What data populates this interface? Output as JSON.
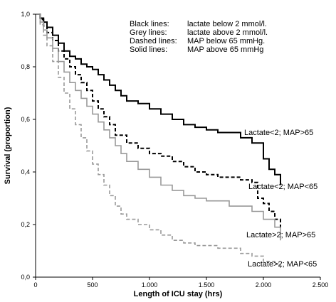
{
  "chart_data": {
    "type": "line",
    "xlabel": "Length of ICU stay (hrs)",
    "ylabel": "Survival (proportion)",
    "xlim": [
      0,
      2500
    ],
    "ylim": [
      0,
      1.0
    ],
    "x_ticks": [
      0,
      500,
      1000,
      1500,
      2000,
      2500
    ],
    "x_tick_labels": [
      "0",
      "500",
      "1.000",
      "1.500",
      "2.000",
      "2.500"
    ],
    "y_ticks": [
      0,
      0.2,
      0.4,
      0.6,
      0.8,
      1.0
    ],
    "y_tick_labels": [
      "0,0",
      "0,2",
      "0,4",
      "0,6",
      "0,8",
      "1,0"
    ],
    "grid": false,
    "legend_lines": [
      {
        "key": "Black lines:",
        "desc": "lactate below 2 mmol/l."
      },
      {
        "key": "Grey lines:",
        "desc": "lactate above 2 mmol/l."
      },
      {
        "key": "Dashed lines:",
        "desc": "MAP below 65 mmHg."
      },
      {
        "key": "Solid lines:",
        "desc": "MAP above 65 mmHg"
      }
    ],
    "legend_placement": "top-right",
    "series": [
      {
        "name": "Lactate<2; MAP>65",
        "color": "#000000",
        "dashed": false,
        "points": [
          [
            0,
            1.0
          ],
          [
            40,
            0.985
          ],
          [
            70,
            0.97
          ],
          [
            100,
            0.95
          ],
          [
            150,
            0.92
          ],
          [
            200,
            0.89
          ],
          [
            250,
            0.86
          ],
          [
            300,
            0.84
          ],
          [
            350,
            0.83
          ],
          [
            400,
            0.81
          ],
          [
            450,
            0.8
          ],
          [
            500,
            0.79
          ],
          [
            550,
            0.77
          ],
          [
            600,
            0.75
          ],
          [
            650,
            0.73
          ],
          [
            700,
            0.71
          ],
          [
            750,
            0.69
          ],
          [
            800,
            0.67
          ],
          [
            900,
            0.66
          ],
          [
            1000,
            0.64
          ],
          [
            1100,
            0.62
          ],
          [
            1200,
            0.6
          ],
          [
            1300,
            0.58
          ],
          [
            1400,
            0.57
          ],
          [
            1500,
            0.56
          ],
          [
            1600,
            0.55
          ],
          [
            1800,
            0.53
          ],
          [
            1900,
            0.51
          ],
          [
            2000,
            0.45
          ],
          [
            2050,
            0.41
          ],
          [
            2100,
            0.39
          ],
          [
            2150,
            0.35
          ]
        ]
      },
      {
        "name": "Lactate<2; MAP<65",
        "color": "#000000",
        "dashed": true,
        "points": [
          [
            0,
            1.0
          ],
          [
            40,
            0.98
          ],
          [
            70,
            0.955
          ],
          [
            100,
            0.93
          ],
          [
            150,
            0.9
          ],
          [
            200,
            0.86
          ],
          [
            250,
            0.83
          ],
          [
            300,
            0.8
          ],
          [
            350,
            0.77
          ],
          [
            400,
            0.74
          ],
          [
            450,
            0.71
          ],
          [
            500,
            0.67
          ],
          [
            550,
            0.64
          ],
          [
            600,
            0.61
          ],
          [
            650,
            0.58
          ],
          [
            700,
            0.54
          ],
          [
            800,
            0.51
          ],
          [
            900,
            0.49
          ],
          [
            1000,
            0.47
          ],
          [
            1100,
            0.46
          ],
          [
            1200,
            0.44
          ],
          [
            1300,
            0.42
          ],
          [
            1400,
            0.4
          ],
          [
            1500,
            0.39
          ],
          [
            1600,
            0.38
          ],
          [
            1800,
            0.37
          ],
          [
            1900,
            0.36
          ],
          [
            1950,
            0.3
          ],
          [
            2000,
            0.28
          ],
          [
            2050,
            0.25
          ],
          [
            2100,
            0.22
          ],
          [
            2150,
            0.18
          ]
        ]
      },
      {
        "name": "Lactate>2; MAP>65",
        "color": "#999999",
        "dashed": false,
        "points": [
          [
            0,
            1.0
          ],
          [
            40,
            0.97
          ],
          [
            70,
            0.94
          ],
          [
            100,
            0.91
          ],
          [
            150,
            0.87
          ],
          [
            200,
            0.82
          ],
          [
            250,
            0.78
          ],
          [
            300,
            0.74
          ],
          [
            350,
            0.71
          ],
          [
            400,
            0.68
          ],
          [
            450,
            0.65
          ],
          [
            500,
            0.62
          ],
          [
            550,
            0.59
          ],
          [
            600,
            0.56
          ],
          [
            650,
            0.53
          ],
          [
            700,
            0.5
          ],
          [
            750,
            0.47
          ],
          [
            800,
            0.44
          ],
          [
            900,
            0.41
          ],
          [
            1000,
            0.38
          ],
          [
            1100,
            0.35
          ],
          [
            1200,
            0.33
          ],
          [
            1300,
            0.31
          ],
          [
            1400,
            0.3
          ],
          [
            1500,
            0.29
          ],
          [
            1700,
            0.27
          ],
          [
            1900,
            0.25
          ],
          [
            2000,
            0.22
          ],
          [
            2100,
            0.19
          ],
          [
            2150,
            0.14
          ]
        ]
      },
      {
        "name": "Lactate>2; MAP<65",
        "color": "#999999",
        "dashed": true,
        "points": [
          [
            0,
            1.0
          ],
          [
            40,
            0.96
          ],
          [
            70,
            0.92
          ],
          [
            100,
            0.88
          ],
          [
            150,
            0.82
          ],
          [
            200,
            0.76
          ],
          [
            250,
            0.7
          ],
          [
            300,
            0.64
          ],
          [
            350,
            0.58
          ],
          [
            400,
            0.53
          ],
          [
            450,
            0.48
          ],
          [
            500,
            0.43
          ],
          [
            550,
            0.39
          ],
          [
            600,
            0.35
          ],
          [
            650,
            0.31
          ],
          [
            700,
            0.27
          ],
          [
            750,
            0.24
          ],
          [
            800,
            0.22
          ],
          [
            900,
            0.2
          ],
          [
            1000,
            0.18
          ],
          [
            1100,
            0.16
          ],
          [
            1200,
            0.14
          ],
          [
            1300,
            0.13
          ],
          [
            1400,
            0.12
          ],
          [
            1600,
            0.11
          ],
          [
            1800,
            0.09
          ],
          [
            1900,
            0.08
          ],
          [
            2000,
            0.06
          ],
          [
            2100,
            0.05
          ],
          [
            2150,
            0.03
          ]
        ]
      }
    ],
    "curve_labels": [
      {
        "text": "Lactate<2; MAP>65",
        "series": 0
      },
      {
        "text": "Lactate<2; MAP<65",
        "series": 1
      },
      {
        "text": "Lactate>2; MAP>65",
        "series": 2
      },
      {
        "text": "Lactate>2; MAP<65",
        "series": 3
      }
    ]
  }
}
